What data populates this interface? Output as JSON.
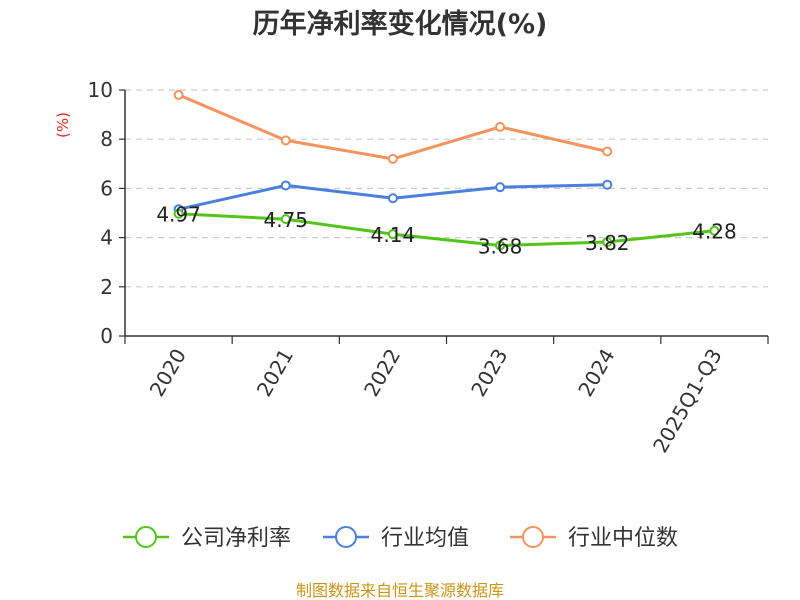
{
  "chart_data": {
    "type": "line",
    "title": "历年净利率变化情况(%)",
    "ylabel": "(%)",
    "xlabel": "",
    "categories": [
      "2020",
      "2021",
      "2022",
      "2023",
      "2024",
      "2025Q1-Q3"
    ],
    "ylim": [
      0,
      10
    ],
    "yticks": [
      0,
      2,
      4,
      6,
      8,
      10
    ],
    "grid": true,
    "legend_position": "bottom",
    "series": [
      {
        "name": "公司净利率",
        "color": "#52c41a",
        "values": [
          4.97,
          4.75,
          4.14,
          3.68,
          3.82,
          4.28
        ],
        "show_labels": true
      },
      {
        "name": "行业均值",
        "color": "#4a7fdb",
        "values": [
          5.15,
          6.12,
          5.6,
          6.05,
          6.15,
          null
        ],
        "show_labels": false
      },
      {
        "name": "行业中位数",
        "color": "#f5935c",
        "values": [
          9.8,
          7.95,
          7.2,
          8.5,
          7.5,
          null
        ],
        "show_labels": false
      }
    ],
    "value_labels": [
      "4.97",
      "4.75",
      "4.14",
      "3.68",
      "3.82",
      "4.28"
    ]
  },
  "footer": {
    "source": "制图数据来自恒生聚源数据库"
  }
}
